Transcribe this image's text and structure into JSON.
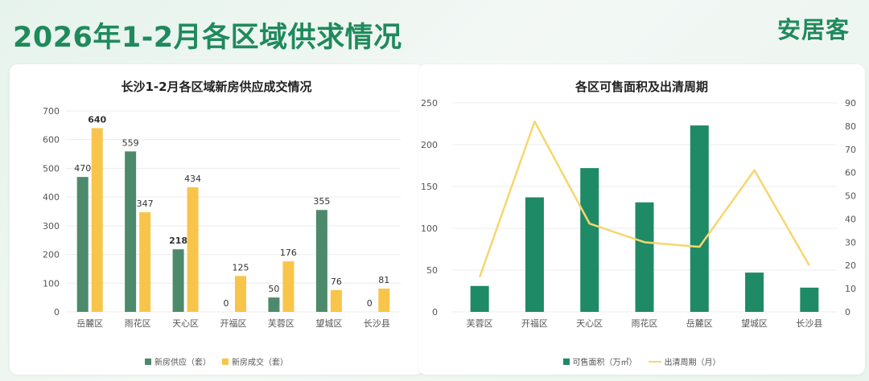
{
  "page": {
    "title": "2026年1-2月各区域供求情况",
    "brand": "安居客"
  },
  "colors": {
    "supply": "#4d8a6c",
    "deal": "#f8c54a",
    "area": "#1f8a66",
    "cycle": "#f5d76e"
  },
  "chart_data": [
    {
      "type": "bar",
      "title": "长沙1-2月各区域新房供应成交情况",
      "categories": [
        "岳麓区",
        "雨花区",
        "天心区",
        "开福区",
        "芙蓉区",
        "望城区",
        "长沙县"
      ],
      "series": [
        {
          "name": "新房供应（套）",
          "values": [
            470,
            559,
            218,
            0,
            50,
            355,
            0
          ]
        },
        {
          "name": "新房成交（套）",
          "values": [
            640,
            347,
            434,
            125,
            176,
            76,
            81
          ]
        }
      ],
      "bold_labels": [
        "640",
        "218"
      ],
      "ylim": [
        0,
        700
      ],
      "yticks": [
        0,
        100,
        200,
        300,
        400,
        500,
        600,
        700
      ],
      "legend_position": "bottom",
      "grid": true
    },
    {
      "type": "bar+line",
      "title": "各区可售面积及出清周期",
      "categories": [
        "芙蓉区",
        "开福区",
        "天心区",
        "雨花区",
        "岳麓区",
        "望城区",
        "长沙县"
      ],
      "series": [
        {
          "name": "可售面积（万㎡）",
          "type": "bar",
          "axis": "left",
          "values": [
            31,
            137,
            172,
            131,
            223,
            47,
            29
          ]
        },
        {
          "name": "出清周期（月）",
          "type": "line",
          "axis": "right",
          "values": [
            15,
            82,
            38,
            30,
            28,
            61,
            20
          ]
        }
      ],
      "ylim_left": [
        0,
        250
      ],
      "yticks_left": [
        0,
        50,
        100,
        150,
        200,
        250
      ],
      "ylim_right": [
        0,
        90
      ],
      "yticks_right": [
        0,
        10,
        20,
        30,
        40,
        50,
        60,
        70,
        80,
        90
      ],
      "legend_position": "bottom",
      "grid": true
    }
  ]
}
